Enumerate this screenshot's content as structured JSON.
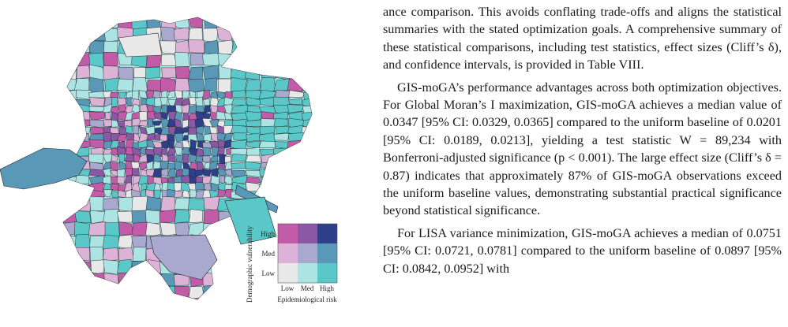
{
  "figure": {
    "legend": {
      "y_axis_label": "Demographic vulnerability",
      "x_axis_label": "Epidemiological risk",
      "y_levels": [
        "High",
        "Med",
        "Low"
      ],
      "x_levels": [
        "Low",
        "Med",
        "High"
      ],
      "colors": [
        [
          "#c25ca8",
          "#8b58a6",
          "#2f3f8a"
        ],
        [
          "#dcb2d6",
          "#a9a9d0",
          "#5a98b8"
        ],
        [
          "#e8e8e8",
          "#ace4e4",
          "#5ac8c8"
        ]
      ]
    }
  },
  "text": {
    "paragraphs": [
      "ance comparison. This avoids conflating trade-offs and aligns the statistical summaries with the stated optimization goals. A comprehensive summary of these statistical comparisons, including test statistics, effect sizes (Cliff’s δ), and confidence intervals, is provided in Table VIII.",
      "GIS-moGA’s performance advantages across both optimization objectives. For Global Moran’s I maximization, GIS-moGA achieves a median value of 0.0347 [95% CI: 0.0329, 0.0365] compared to the uniform baseline of 0.0201 [95% CI: 0.0189, 0.0213], yielding a test statistic W = 89,234 with Bonferroni-adjusted significance (p < 0.001). The large effect size (Cliff’s δ = 0.87) indicates that approximately 87% of GIS-moGA observations exceed the uniform baseline values, demonstrating substantial practical significance beyond statistical significance.",
      "For LISA variance minimization, GIS-moGA achieves a median of 0.0751 [95% CI: 0.0721, 0.0781] compared to the uniform baseline of 0.0897 [95% CI: 0.0842, 0.0952] with"
    ]
  }
}
